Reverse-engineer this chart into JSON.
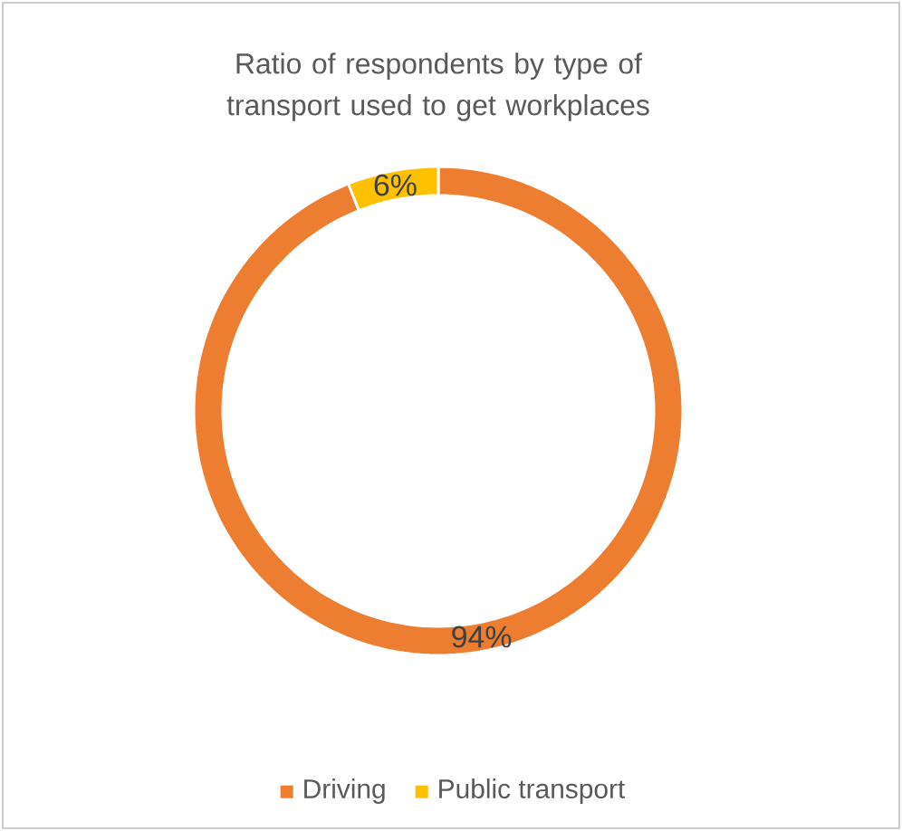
{
  "chart_data": {
    "type": "donut",
    "title": "Ratio of respondents by type of transport used to get workplaces",
    "categories": [
      "Driving",
      "Public transport"
    ],
    "values": [
      94,
      6
    ],
    "value_labels": [
      "94%",
      "6%"
    ],
    "colors": [
      "#ed7d31",
      "#ffc000"
    ],
    "legend": "bottom"
  }
}
